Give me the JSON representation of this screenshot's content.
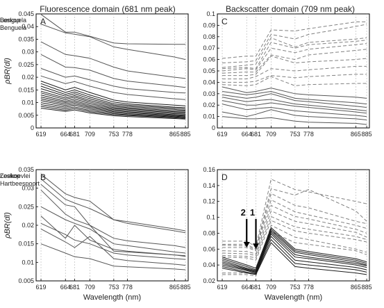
{
  "titles": {
    "left": "Fluorescence domain (681 nm peak)",
    "right": "Backscatter domain (709 nm peak)"
  },
  "xlabel": "Wavelength (nm)",
  "ylabel": "ρBR(dl)",
  "colors": {
    "solid": "#555555",
    "dark": "#1a1a1a",
    "dashed": "#808080",
    "grid": "#bdbdbd"
  },
  "chart_data": [
    {
      "type": "line",
      "panel": "A",
      "xticks": [
        619,
        664,
        681,
        709,
        753,
        778,
        865,
        885
      ],
      "xlim": [
        610,
        890
      ],
      "ylim": [
        0,
        0.045
      ],
      "yticks": [
        0,
        0.005,
        0.01,
        0.015,
        0.02,
        0.025,
        0.03,
        0.035,
        0.04,
        0.045
      ],
      "grid_x": true,
      "legend": {
        "position": "top-right",
        "entries": [
          {
            "label": "Benguela",
            "style": "solid"
          }
        ]
      },
      "series": [
        {
          "style": "solid",
          "y": [
            0.0448,
            0.0378,
            0.0378,
            0.0362,
            0.0335,
            0.0332,
            0.033,
            0.033
          ]
        },
        {
          "style": "solid",
          "y": [
            0.041,
            0.0375,
            0.037,
            0.036,
            0.032,
            0.031,
            0.028,
            0.027
          ]
        },
        {
          "style": "solid",
          "y": [
            0.034,
            0.029,
            0.0285,
            0.0275,
            0.024,
            0.0225,
            0.02,
            0.0195
          ]
        },
        {
          "style": "solid",
          "y": [
            0.029,
            0.024,
            0.0238,
            0.0228,
            0.0195,
            0.0185,
            0.0165,
            0.016
          ]
        },
        {
          "style": "solid",
          "y": [
            0.0235,
            0.02,
            0.0205,
            0.019,
            0.0165,
            0.0155,
            0.014,
            0.0138
          ]
        },
        {
          "style": "solid",
          "y": [
            0.0205,
            0.0175,
            0.0183,
            0.0165,
            0.014,
            0.0132,
            0.0115,
            0.0112
          ]
        },
        {
          "style": "dark",
          "y": [
            0.0185,
            0.015,
            0.016,
            0.014,
            0.011,
            0.0102,
            0.009,
            0.0087
          ]
        },
        {
          "style": "dark",
          "y": [
            0.0175,
            0.014,
            0.015,
            0.013,
            0.0102,
            0.0095,
            0.0082,
            0.008
          ]
        },
        {
          "style": "dark",
          "y": [
            0.0165,
            0.0132,
            0.0142,
            0.0122,
            0.0095,
            0.009,
            0.0078,
            0.0075
          ]
        },
        {
          "style": "dark",
          "y": [
            0.0155,
            0.0125,
            0.0135,
            0.0115,
            0.009,
            0.0085,
            0.0073,
            0.007
          ]
        },
        {
          "style": "dark",
          "y": [
            0.0145,
            0.0118,
            0.0128,
            0.0108,
            0.0085,
            0.008,
            0.0068,
            0.0066
          ]
        },
        {
          "style": "dark",
          "y": [
            0.0138,
            0.0112,
            0.0122,
            0.0102,
            0.008,
            0.0076,
            0.0064,
            0.0062
          ]
        },
        {
          "style": "dark",
          "y": [
            0.013,
            0.0105,
            0.0115,
            0.0096,
            0.0076,
            0.0072,
            0.006,
            0.0058
          ]
        },
        {
          "style": "dark",
          "y": [
            0.0122,
            0.01,
            0.0108,
            0.009,
            0.0072,
            0.0068,
            0.0056,
            0.0054
          ]
        },
        {
          "style": "dark",
          "y": [
            0.0115,
            0.0094,
            0.0102,
            0.0085,
            0.0068,
            0.0064,
            0.0052,
            0.005
          ]
        },
        {
          "style": "dark",
          "y": [
            0.0108,
            0.0088,
            0.0096,
            0.008,
            0.0064,
            0.006,
            0.0049,
            0.0047
          ]
        },
        {
          "style": "dark",
          "y": [
            0.01,
            0.0082,
            0.009,
            0.0075,
            0.006,
            0.0056,
            0.0046,
            0.0044
          ]
        },
        {
          "style": "dark",
          "y": [
            0.0092,
            0.0076,
            0.0083,
            0.0069,
            0.0056,
            0.0052,
            0.0043,
            0.0041
          ]
        },
        {
          "style": "dark",
          "y": [
            0.0085,
            0.007,
            0.0077,
            0.0064,
            0.0052,
            0.0049,
            0.004,
            0.0038
          ]
        },
        {
          "style": "dark",
          "y": [
            0.0078,
            0.0065,
            0.0071,
            0.0059,
            0.0048,
            0.0045,
            0.0037,
            0.0035
          ]
        }
      ]
    },
    {
      "type": "line",
      "panel": "C",
      "xticks": [
        619,
        664,
        681,
        709,
        753,
        778,
        865,
        885
      ],
      "xlim": [
        610,
        890
      ],
      "ylim": [
        0,
        0.1
      ],
      "yticks": [
        0,
        0.01,
        0.02,
        0.03,
        0.04,
        0.05,
        0.06,
        0.07,
        0.08,
        0.09,
        0.1
      ],
      "grid_x": true,
      "legend": {
        "position": "top-right",
        "entries": [
          {
            "label": "Loskop",
            "style": "dashed"
          },
          {
            "label": "Benguela",
            "style": "solid"
          }
        ]
      },
      "series": [
        {
          "style": "dashed",
          "y": [
            0.061,
            0.063,
            0.063,
            0.086,
            0.085,
            0.087,
            0.093,
            0.093
          ]
        },
        {
          "style": "dashed",
          "y": [
            0.057,
            0.058,
            0.059,
            0.082,
            0.078,
            0.082,
            0.089,
            0.091
          ]
        },
        {
          "style": "dashed",
          "y": [
            0.053,
            0.055,
            0.056,
            0.079,
            0.071,
            0.075,
            0.078,
            0.079
          ]
        },
        {
          "style": "dashed",
          "y": [
            0.052,
            0.053,
            0.052,
            0.075,
            0.07,
            0.073,
            0.076,
            0.077
          ]
        },
        {
          "style": "dashed",
          "y": [
            0.05,
            0.052,
            0.051,
            0.07,
            0.066,
            0.069,
            0.073,
            0.074
          ]
        },
        {
          "style": "dashed",
          "y": [
            0.048,
            0.049,
            0.049,
            0.064,
            0.06,
            0.064,
            0.068,
            0.069
          ]
        },
        {
          "style": "dashed",
          "y": [
            0.046,
            0.046,
            0.047,
            0.063,
            0.057,
            0.058,
            0.06,
            0.061
          ]
        },
        {
          "style": "dashed",
          "y": [
            0.043,
            0.043,
            0.045,
            0.052,
            0.05,
            0.051,
            0.054,
            0.054
          ]
        },
        {
          "style": "dashed",
          "y": [
            0.04,
            0.04,
            0.041,
            0.046,
            0.044,
            0.045,
            0.047,
            0.047
          ]
        },
        {
          "style": "dashed",
          "y": [
            0.038,
            0.037,
            0.038,
            0.045,
            0.037,
            0.038,
            0.039,
            0.039
          ]
        },
        {
          "style": "solid",
          "y": [
            0.036,
            0.031,
            0.032,
            0.035,
            0.03,
            0.029,
            0.027,
            0.026
          ]
        },
        {
          "style": "solid",
          "y": [
            0.032,
            0.029,
            0.03,
            0.032,
            0.026,
            0.025,
            0.022,
            0.021
          ]
        },
        {
          "style": "solid",
          "y": [
            0.029,
            0.026,
            0.027,
            0.03,
            0.024,
            0.023,
            0.019,
            0.018
          ]
        },
        {
          "style": "solid",
          "y": [
            0.027,
            0.023,
            0.024,
            0.025,
            0.021,
            0.02,
            0.016,
            0.015
          ]
        },
        {
          "style": "solid",
          "y": [
            0.024,
            0.02,
            0.02,
            0.022,
            0.019,
            0.018,
            0.014,
            0.013
          ]
        },
        {
          "style": "solid",
          "y": [
            0.021,
            0.016,
            0.017,
            0.018,
            0.015,
            0.014,
            0.011,
            0.01
          ]
        },
        {
          "style": "solid",
          "y": [
            0.014,
            0.01,
            0.012,
            0.016,
            0.011,
            0.01,
            0.008,
            0.007
          ]
        },
        {
          "style": "solid",
          "y": [
            0.01,
            0.008,
            0.008,
            0.009,
            0.006,
            0.005,
            0.004,
            0.003
          ]
        }
      ]
    },
    {
      "type": "line",
      "panel": "B",
      "xticks": [
        619,
        664,
        681,
        709,
        753,
        778,
        865,
        885
      ],
      "xlim": [
        610,
        890
      ],
      "ylim": [
        0.005,
        0.035
      ],
      "yticks": [
        0.005,
        0.01,
        0.015,
        0.02,
        0.025,
        0.03,
        0.035
      ],
      "grid_x": true,
      "legend": {
        "position": "top-right",
        "entries": [
          {
            "label": "Loskop",
            "style": "solid"
          }
        ]
      },
      "series": [
        {
          "style": "solid",
          "y": [
            0.0338,
            0.0285,
            0.0275,
            0.0265,
            0.0215,
            0.021,
            0.019,
            0.0185
          ]
        },
        {
          "style": "solid",
          "y": [
            0.0325,
            0.027,
            0.026,
            0.0245,
            0.0215,
            0.0205,
            0.0185,
            0.018
          ]
        },
        {
          "style": "solid",
          "y": [
            0.031,
            0.0255,
            0.025,
            0.02,
            0.013,
            0.0128,
            0.012,
            0.0118
          ]
        },
        {
          "style": "solid",
          "y": [
            0.0295,
            0.023,
            0.0215,
            0.02,
            0.0165,
            0.0158,
            0.0145,
            0.014
          ]
        },
        {
          "style": "solid",
          "y": [
            0.025,
            0.0215,
            0.0205,
            0.019,
            0.015,
            0.0145,
            0.0128,
            0.0125
          ]
        },
        {
          "style": "solid",
          "y": [
            0.0225,
            0.0165,
            0.02,
            0.016,
            0.0135,
            0.013,
            0.012,
            0.0116
          ]
        },
        {
          "style": "solid",
          "y": [
            0.0205,
            0.0175,
            0.016,
            0.015,
            0.0125,
            0.012,
            0.011,
            0.0108
          ]
        },
        {
          "style": "solid",
          "y": [
            0.019,
            0.0155,
            0.014,
            0.017,
            0.011,
            0.0105,
            0.0095,
            0.0092
          ]
        },
        {
          "style": "solid",
          "y": [
            0.015,
            0.0125,
            0.0115,
            0.011,
            0.009,
            0.0088,
            0.0082,
            0.008
          ]
        }
      ]
    },
    {
      "type": "line",
      "panel": "D",
      "xticks": [
        619,
        664,
        681,
        709,
        753,
        778,
        865,
        885
      ],
      "xlim": [
        610,
        890
      ],
      "ylim": [
        0.02,
        0.16
      ],
      "yticks": [
        0.02,
        0.04,
        0.06,
        0.08,
        0.1,
        0.12,
        0.14,
        0.16
      ],
      "grid_x": true,
      "legend": {
        "position": "top-right",
        "entries": [
          {
            "label": "Zeekoevlei",
            "style": "solid"
          },
          {
            "label": "Hartbeespoort",
            "style": "dashed"
          }
        ]
      },
      "annotations": [
        {
          "label": "2",
          "x": 664,
          "arrow_from_y": 0.098,
          "arrow_to_y": 0.062
        },
        {
          "label": "1",
          "x": 681,
          "arrow_from_y": 0.098,
          "arrow_to_y": 0.06
        }
      ],
      "series": [
        {
          "style": "dashed",
          "y": [
            0.07,
            0.07,
            0.063,
            0.148,
            0.135,
            0.132,
            0.12,
            0.117
          ]
        },
        {
          "style": "dashed",
          "y": [
            0.066,
            0.066,
            0.06,
            0.136,
            0.128,
            0.135,
            0.108,
            0.095
          ]
        },
        {
          "style": "dashed",
          "y": [
            0.065,
            0.064,
            0.059,
            0.13,
            0.115,
            0.112,
            0.095,
            0.092
          ]
        },
        {
          "style": "dashed",
          "y": [
            0.062,
            0.062,
            0.058,
            0.122,
            0.107,
            0.103,
            0.09,
            0.086
          ]
        },
        {
          "style": "dashed",
          "y": [
            0.058,
            0.057,
            0.054,
            0.115,
            0.101,
            0.098,
            0.085,
            0.08
          ]
        },
        {
          "style": "dashed",
          "y": [
            0.055,
            0.054,
            0.052,
            0.108,
            0.095,
            0.092,
            0.081,
            0.075
          ]
        },
        {
          "style": "dashed",
          "y": [
            0.052,
            0.051,
            0.049,
            0.101,
            0.088,
            0.085,
            0.076,
            0.072
          ]
        },
        {
          "style": "dashed",
          "y": [
            0.05,
            0.049,
            0.046,
            0.096,
            0.083,
            0.08,
            0.072,
            0.069
          ]
        },
        {
          "style": "dashed",
          "y": [
            0.03,
            0.03,
            0.028,
            0.09,
            0.075,
            0.072,
            0.06,
            0.056
          ]
        },
        {
          "style": "dashed",
          "y": [
            0.028,
            0.028,
            0.026,
            0.082,
            0.068,
            0.066,
            0.058,
            0.053
          ]
        },
        {
          "style": "dark",
          "y": [
            0.05,
            0.04,
            0.036,
            0.087,
            0.06,
            0.057,
            0.048,
            0.044
          ]
        },
        {
          "style": "dark",
          "y": [
            0.048,
            0.038,
            0.034,
            0.085,
            0.058,
            0.055,
            0.046,
            0.042
          ]
        },
        {
          "style": "dark",
          "y": [
            0.046,
            0.036,
            0.033,
            0.083,
            0.056,
            0.053,
            0.044,
            0.04
          ]
        },
        {
          "style": "dark",
          "y": [
            0.044,
            0.035,
            0.032,
            0.081,
            0.053,
            0.05,
            0.042,
            0.039
          ]
        },
        {
          "style": "dark",
          "y": [
            0.042,
            0.034,
            0.031,
            0.079,
            0.05,
            0.048,
            0.04,
            0.037
          ]
        },
        {
          "style": "dark",
          "y": [
            0.04,
            0.033,
            0.03,
            0.076,
            0.046,
            0.044,
            0.037,
            0.034
          ]
        },
        {
          "style": "dark",
          "y": [
            0.038,
            0.031,
            0.029,
            0.072,
            0.042,
            0.04,
            0.034,
            0.031
          ]
        },
        {
          "style": "dark",
          "y": [
            0.036,
            0.03,
            0.028,
            0.068,
            0.038,
            0.036,
            0.03,
            0.028
          ]
        }
      ]
    }
  ]
}
